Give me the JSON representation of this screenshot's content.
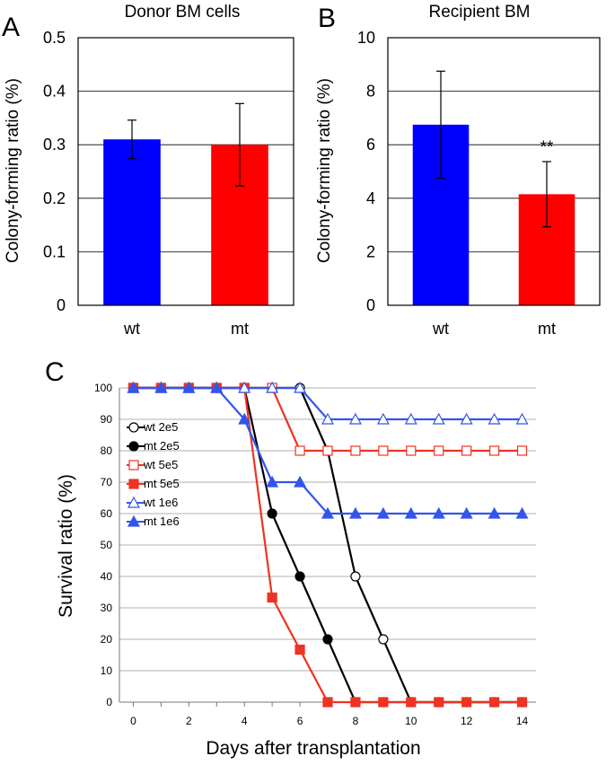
{
  "chart_data": [
    {
      "panel": "A",
      "type": "bar",
      "title": "Donor BM cells",
      "ylabel": "Colony-forming ratio (%)",
      "xlabel": "",
      "categories": [
        "wt",
        "mt"
      ],
      "values": [
        0.31,
        0.3
      ],
      "errors": [
        0.036,
        0.077
      ],
      "colors": [
        "#0000FF",
        "#FF0000"
      ],
      "ylim": [
        0,
        0.5
      ],
      "yticks": [
        0,
        0.1,
        0.2,
        0.3,
        0.4,
        0.5
      ],
      "ytick_labels": [
        "0",
        "0.1",
        "0.2",
        "0.3",
        "0.4",
        "0.5"
      ],
      "grid": true
    },
    {
      "panel": "B",
      "type": "bar",
      "title": "Recipient BM",
      "ylabel": "Colony-forming ratio (%)",
      "xlabel": "",
      "categories": [
        "wt",
        "mt"
      ],
      "values": [
        6.75,
        4.15
      ],
      "errors": [
        2.0,
        1.22
      ],
      "colors": [
        "#0000FF",
        "#FF0000"
      ],
      "ylim": [
        0,
        10
      ],
      "yticks": [
        0,
        2,
        4,
        6,
        8,
        10
      ],
      "ytick_labels": [
        "0",
        "2",
        "4",
        "6",
        "8",
        "10"
      ],
      "grid": true,
      "annotation": "**"
    },
    {
      "panel": "C",
      "type": "line",
      "title": "",
      "xlabel": "Days after transplantation",
      "ylabel": "Survival ratio (%)",
      "xlim": [
        -0.5,
        14.5
      ],
      "ylim": [
        0,
        100
      ],
      "xticks": [
        0,
        2,
        4,
        6,
        8,
        10,
        12,
        14
      ],
      "xtick_labels": [
        "0",
        "2",
        "4",
        "6",
        "8",
        "10",
        "12",
        "14"
      ],
      "yticks": [
        0,
        10,
        20,
        30,
        40,
        50,
        60,
        70,
        80,
        90,
        100
      ],
      "ytick_labels": [
        "0",
        "10",
        "20",
        "30",
        "40",
        "50",
        "60",
        "70",
        "80",
        "90",
        "100"
      ],
      "grid": true,
      "legend_position": "left",
      "series": [
        {
          "name": "wt 2e5",
          "color": "#000000",
          "marker": "circle",
          "filled": false,
          "x": [
            0,
            1,
            2,
            3,
            4,
            5,
            6,
            7,
            8,
            9,
            10,
            11,
            12,
            13,
            14
          ],
          "values": [
            100,
            100,
            100,
            100,
            100,
            100,
            100,
            80,
            40,
            20,
            0,
            0,
            0,
            0,
            0
          ]
        },
        {
          "name": "mt 2e5",
          "color": "#000000",
          "marker": "circle",
          "filled": true,
          "x": [
            0,
            1,
            2,
            3,
            4,
            5,
            6,
            7,
            8,
            9,
            10,
            11,
            12,
            13,
            14
          ],
          "values": [
            100,
            100,
            100,
            100,
            100,
            60,
            40,
            20,
            0,
            0,
            0,
            0,
            0,
            0,
            0
          ]
        },
        {
          "name": "wt 5e5",
          "color": "#EE3322",
          "marker": "square",
          "filled": false,
          "x": [
            0,
            1,
            2,
            3,
            4,
            5,
            6,
            7,
            8,
            9,
            10,
            11,
            12,
            13,
            14
          ],
          "values": [
            100,
            100,
            100,
            100,
            100,
            100,
            80,
            80,
            80,
            80,
            80,
            80,
            80,
            80,
            80
          ]
        },
        {
          "name": "mt 5e5",
          "color": "#EE3322",
          "marker": "square",
          "filled": true,
          "x": [
            0,
            1,
            2,
            3,
            4,
            5,
            6,
            7,
            8,
            9,
            10,
            11,
            12,
            13,
            14
          ],
          "values": [
            100,
            100,
            100,
            100,
            100,
            33.3,
            16.7,
            0,
            0,
            0,
            0,
            0,
            0,
            0,
            0
          ]
        },
        {
          "name": "wt 1e6",
          "color": "#3355EE",
          "marker": "triangle",
          "filled": false,
          "x": [
            0,
            1,
            2,
            3,
            4,
            5,
            6,
            7,
            8,
            9,
            10,
            11,
            12,
            13,
            14
          ],
          "values": [
            100,
            100,
            100,
            100,
            100,
            100,
            100,
            90,
            90,
            90,
            90,
            90,
            90,
            90,
            90
          ]
        },
        {
          "name": "mt 1e6",
          "color": "#3355EE",
          "marker": "triangle",
          "filled": true,
          "x": [
            0,
            1,
            2,
            3,
            4,
            5,
            6,
            7,
            8,
            9,
            10,
            11,
            12,
            13,
            14
          ],
          "values": [
            100,
            100,
            100,
            100,
            90,
            70,
            70,
            60,
            60,
            60,
            60,
            60,
            60,
            60,
            60
          ]
        }
      ]
    }
  ]
}
